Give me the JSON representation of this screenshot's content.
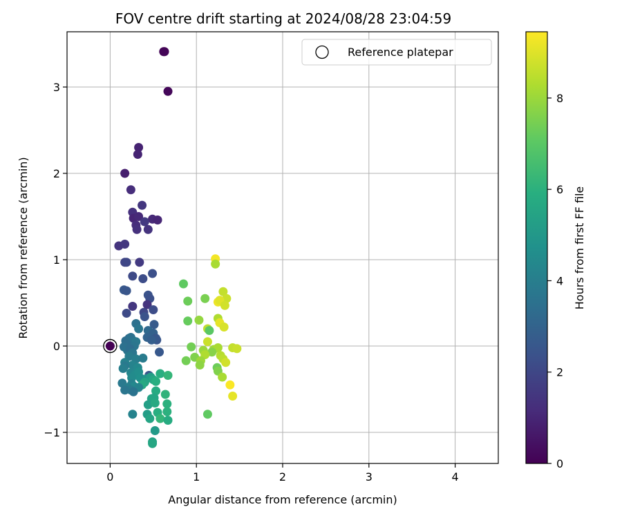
{
  "chart_data": {
    "type": "scatter",
    "title": "FOV centre drift starting at 2024/08/28 23:04:59",
    "xlabel": "Angular distance from reference (arcmin)",
    "ylabel": "Rotation from reference (arcmin)",
    "xlim": [
      -0.5,
      4.5
    ],
    "ylim": [
      -1.36,
      3.64
    ],
    "xticks": [
      0,
      1,
      2,
      3,
      4
    ],
    "yticks": [
      -1,
      0,
      1,
      2,
      3
    ],
    "xtick_labels": [
      "0",
      "1",
      "2",
      "3",
      "4"
    ],
    "ytick_labels": [
      "−1",
      "0",
      "1",
      "2",
      "3"
    ],
    "grid": true,
    "legend": {
      "placement": "top-right",
      "entries": [
        "Reference platepar"
      ]
    },
    "colorbar": {
      "label": "Hours from first FF file",
      "range": [
        0,
        9.45
      ],
      "ticks": [
        0,
        2,
        4,
        6,
        8
      ],
      "tick_labels": [
        "0",
        "2",
        "4",
        "6",
        "8"
      ],
      "colormap": "viridis"
    },
    "reference_point": {
      "x": 0,
      "y": 0,
      "hours": 0,
      "marker": "hollow-circle"
    },
    "points": [
      {
        "x": 0.63,
        "y": 3.41,
        "h": 0.05
      },
      {
        "x": 0.62,
        "y": 3.41,
        "h": 0.1
      },
      {
        "x": 0.67,
        "y": 2.95,
        "h": 0.15
      },
      {
        "x": 0.33,
        "y": 2.3,
        "h": 0.9
      },
      {
        "x": 0.32,
        "y": 2.22,
        "h": 0.95
      },
      {
        "x": 0.17,
        "y": 2.0,
        "h": 0.8
      },
      {
        "x": 0.24,
        "y": 1.81,
        "h": 1.2
      },
      {
        "x": 0.37,
        "y": 1.63,
        "h": 1.5
      },
      {
        "x": 0.26,
        "y": 1.55,
        "h": 1.3
      },
      {
        "x": 0.27,
        "y": 1.48,
        "h": 1.0
      },
      {
        "x": 0.33,
        "y": 1.5,
        "h": 1.1
      },
      {
        "x": 0.49,
        "y": 1.47,
        "h": 1.1
      },
      {
        "x": 0.55,
        "y": 1.46,
        "h": 1.0
      },
      {
        "x": 0.4,
        "y": 1.44,
        "h": 1.6
      },
      {
        "x": 0.3,
        "y": 1.4,
        "h": 1.2
      },
      {
        "x": 0.31,
        "y": 1.35,
        "h": 1.3
      },
      {
        "x": 0.44,
        "y": 1.35,
        "h": 1.4
      },
      {
        "x": 0.1,
        "y": 1.16,
        "h": 1.4
      },
      {
        "x": 0.17,
        "y": 1.18,
        "h": 1.5
      },
      {
        "x": 0.17,
        "y": 0.97,
        "h": 1.9
      },
      {
        "x": 0.19,
        "y": 0.97,
        "h": 2.0
      },
      {
        "x": 0.34,
        "y": 0.97,
        "h": 1.6
      },
      {
        "x": 0.49,
        "y": 0.84,
        "h": 2.3
      },
      {
        "x": 0.26,
        "y": 0.81,
        "h": 2.1
      },
      {
        "x": 0.38,
        "y": 0.78,
        "h": 2.2
      },
      {
        "x": 0.16,
        "y": 0.65,
        "h": 2.6
      },
      {
        "x": 0.19,
        "y": 0.64,
        "h": 2.5
      },
      {
        "x": 0.44,
        "y": 0.59,
        "h": 2.4
      },
      {
        "x": 0.46,
        "y": 0.55,
        "h": 2.3
      },
      {
        "x": 0.43,
        "y": 0.48,
        "h": 1.4
      },
      {
        "x": 0.26,
        "y": 0.46,
        "h": 1.5
      },
      {
        "x": 0.5,
        "y": 0.42,
        "h": 2.2
      },
      {
        "x": 0.39,
        "y": 0.39,
        "h": 2.0
      },
      {
        "x": 0.19,
        "y": 0.38,
        "h": 2.1
      },
      {
        "x": 0.4,
        "y": 0.34,
        "h": 2.4
      },
      {
        "x": 0.3,
        "y": 0.26,
        "h": 3.5
      },
      {
        "x": 0.51,
        "y": 0.25,
        "h": 2.7
      },
      {
        "x": 0.33,
        "y": 0.2,
        "h": 3.7
      },
      {
        "x": 0.44,
        "y": 0.18,
        "h": 3.2
      },
      {
        "x": 0.5,
        "y": 0.15,
        "h": 2.9
      },
      {
        "x": 0.43,
        "y": 0.1,
        "h": 3.0
      },
      {
        "x": 0.54,
        "y": 0.07,
        "h": 2.5
      },
      {
        "x": 0.53,
        "y": 0.09,
        "h": 2.6
      },
      {
        "x": 0.48,
        "y": 0.07,
        "h": 2.8
      },
      {
        "x": 0.22,
        "y": 0.09,
        "h": 3.3
      },
      {
        "x": 0.18,
        "y": 0.06,
        "h": 3.4
      },
      {
        "x": 0.24,
        "y": 0.1,
        "h": 3.5
      },
      {
        "x": 0.27,
        "y": 0.06,
        "h": 3.6
      },
      {
        "x": 0.3,
        "y": 0.05,
        "h": 3.8
      },
      {
        "x": 0.19,
        "y": 0.02,
        "h": 3.4
      },
      {
        "x": 0.16,
        "y": -0.01,
        "h": 3.5
      },
      {
        "x": 0.28,
        "y": 0.0,
        "h": 3.7
      },
      {
        "x": 0.2,
        "y": -0.05,
        "h": 3.6
      },
      {
        "x": 0.23,
        "y": -0.03,
        "h": 3.4
      },
      {
        "x": 0.26,
        "y": -0.08,
        "h": 3.7
      },
      {
        "x": 0.57,
        "y": -0.07,
        "h": 2.6
      },
      {
        "x": 0.22,
        "y": -0.12,
        "h": 3.9
      },
      {
        "x": 0.3,
        "y": -0.15,
        "h": 4.0
      },
      {
        "x": 0.38,
        "y": -0.14,
        "h": 3.9
      },
      {
        "x": 0.17,
        "y": -0.19,
        "h": 4.1
      },
      {
        "x": 0.26,
        "y": -0.22,
        "h": 4.2
      },
      {
        "x": 0.17,
        "y": -0.23,
        "h": 3.8
      },
      {
        "x": 0.32,
        "y": -0.25,
        "h": 4.4
      },
      {
        "x": 0.15,
        "y": -0.26,
        "h": 4.0
      },
      {
        "x": 0.24,
        "y": -0.31,
        "h": 4.3
      },
      {
        "x": 0.29,
        "y": -0.33,
        "h": 4.5
      },
      {
        "x": 0.33,
        "y": -0.3,
        "h": 4.6
      },
      {
        "x": 0.45,
        "y": -0.34,
        "h": 2.5
      },
      {
        "x": 0.58,
        "y": -0.32,
        "h": 5.9
      },
      {
        "x": 0.25,
        "y": -0.37,
        "h": 4.5
      },
      {
        "x": 0.35,
        "y": -0.37,
        "h": 4.7
      },
      {
        "x": 0.42,
        "y": -0.38,
        "h": 4.8
      },
      {
        "x": 0.47,
        "y": -0.36,
        "h": 5.2
      },
      {
        "x": 0.5,
        "y": -0.39,
        "h": 5.6
      },
      {
        "x": 0.53,
        "y": -0.41,
        "h": 5.9
      },
      {
        "x": 0.4,
        "y": -0.42,
        "h": 5.5
      },
      {
        "x": 0.14,
        "y": -0.43,
        "h": 3.8
      },
      {
        "x": 0.37,
        "y": -0.45,
        "h": 5.7
      },
      {
        "x": 0.25,
        "y": -0.44,
        "h": 4.1
      },
      {
        "x": 0.28,
        "y": -0.47,
        "h": 4.4
      },
      {
        "x": 0.33,
        "y": -0.48,
        "h": 4.2
      },
      {
        "x": 0.2,
        "y": -0.48,
        "h": 4.0
      },
      {
        "x": 0.24,
        "y": -0.51,
        "h": 3.9
      },
      {
        "x": 0.17,
        "y": -0.51,
        "h": 3.7
      },
      {
        "x": 0.27,
        "y": -0.53,
        "h": 3.6
      },
      {
        "x": 0.53,
        "y": -0.52,
        "h": 5.8
      },
      {
        "x": 0.67,
        "y": -0.34,
        "h": 6.2
      },
      {
        "x": 0.48,
        "y": -0.61,
        "h": 5.4
      },
      {
        "x": 0.51,
        "y": -0.6,
        "h": 5.6
      },
      {
        "x": 0.64,
        "y": -0.56,
        "h": 6.1
      },
      {
        "x": 0.44,
        "y": -0.68,
        "h": 5.3
      },
      {
        "x": 0.52,
        "y": -0.66,
        "h": 5.7
      },
      {
        "x": 0.66,
        "y": -0.67,
        "h": 6.0
      },
      {
        "x": 0.26,
        "y": -0.79,
        "h": 4.2
      },
      {
        "x": 0.43,
        "y": -0.79,
        "h": 5.2
      },
      {
        "x": 0.46,
        "y": -0.84,
        "h": 5.5
      },
      {
        "x": 0.55,
        "y": -0.77,
        "h": 5.9
      },
      {
        "x": 0.58,
        "y": -0.84,
        "h": 6.2
      },
      {
        "x": 0.66,
        "y": -0.76,
        "h": 6.0
      },
      {
        "x": 0.67,
        "y": -0.86,
        "h": 5.8
      },
      {
        "x": 0.52,
        "y": -0.98,
        "h": 5.1
      },
      {
        "x": 0.49,
        "y": -1.11,
        "h": 5.4
      },
      {
        "x": 0.49,
        "y": -1.13,
        "h": 5.6
      },
      {
        "x": 0.85,
        "y": 0.72,
        "h": 7.1
      },
      {
        "x": 0.9,
        "y": 0.52,
        "h": 7.3
      },
      {
        "x": 1.22,
        "y": 1.01,
        "h": 9.3
      },
      {
        "x": 1.22,
        "y": 0.95,
        "h": 8.2
      },
      {
        "x": 1.31,
        "y": 0.63,
        "h": 8.6
      },
      {
        "x": 1.1,
        "y": 0.55,
        "h": 7.5
      },
      {
        "x": 1.35,
        "y": 0.55,
        "h": 8.7
      },
      {
        "x": 1.25,
        "y": 0.51,
        "h": 9.2
      },
      {
        "x": 1.27,
        "y": 0.53,
        "h": 9.0
      },
      {
        "x": 1.33,
        "y": 0.47,
        "h": 8.8
      },
      {
        "x": 1.25,
        "y": 0.32,
        "h": 8.3
      },
      {
        "x": 0.9,
        "y": 0.29,
        "h": 7.2
      },
      {
        "x": 1.03,
        "y": 0.3,
        "h": 7.9
      },
      {
        "x": 1.27,
        "y": 0.27,
        "h": 9.1
      },
      {
        "x": 1.32,
        "y": 0.22,
        "h": 8.9
      },
      {
        "x": 1.13,
        "y": 0.2,
        "h": 8.5
      },
      {
        "x": 1.15,
        "y": 0.18,
        "h": 7.0
      },
      {
        "x": 1.13,
        "y": 0.05,
        "h": 8.7
      },
      {
        "x": 0.94,
        "y": -0.01,
        "h": 7.4
      },
      {
        "x": 1.2,
        "y": -0.04,
        "h": 8.1
      },
      {
        "x": 1.25,
        "y": -0.02,
        "h": 8.2
      },
      {
        "x": 1.42,
        "y": -0.02,
        "h": 8.6
      },
      {
        "x": 1.47,
        "y": -0.03,
        "h": 8.7
      },
      {
        "x": 1.08,
        "y": -0.05,
        "h": 8.0
      },
      {
        "x": 1.18,
        "y": -0.07,
        "h": 7.7
      },
      {
        "x": 1.1,
        "y": -0.1,
        "h": 8.3
      },
      {
        "x": 1.28,
        "y": -0.11,
        "h": 8.4
      },
      {
        "x": 0.98,
        "y": -0.13,
        "h": 7.6
      },
      {
        "x": 1.31,
        "y": -0.15,
        "h": 8.5
      },
      {
        "x": 0.88,
        "y": -0.17,
        "h": 7.4
      },
      {
        "x": 1.05,
        "y": -0.17,
        "h": 8.0
      },
      {
        "x": 1.34,
        "y": -0.19,
        "h": 8.8
      },
      {
        "x": 1.04,
        "y": -0.22,
        "h": 7.8
      },
      {
        "x": 1.24,
        "y": -0.25,
        "h": 7.3
      },
      {
        "x": 1.25,
        "y": -0.29,
        "h": 7.6
      },
      {
        "x": 1.3,
        "y": -0.36,
        "h": 8.2
      },
      {
        "x": 1.39,
        "y": -0.45,
        "h": 9.4
      },
      {
        "x": 1.42,
        "y": -0.58,
        "h": 9.1
      },
      {
        "x": 1.13,
        "y": -0.79,
        "h": 7.1
      }
    ]
  }
}
